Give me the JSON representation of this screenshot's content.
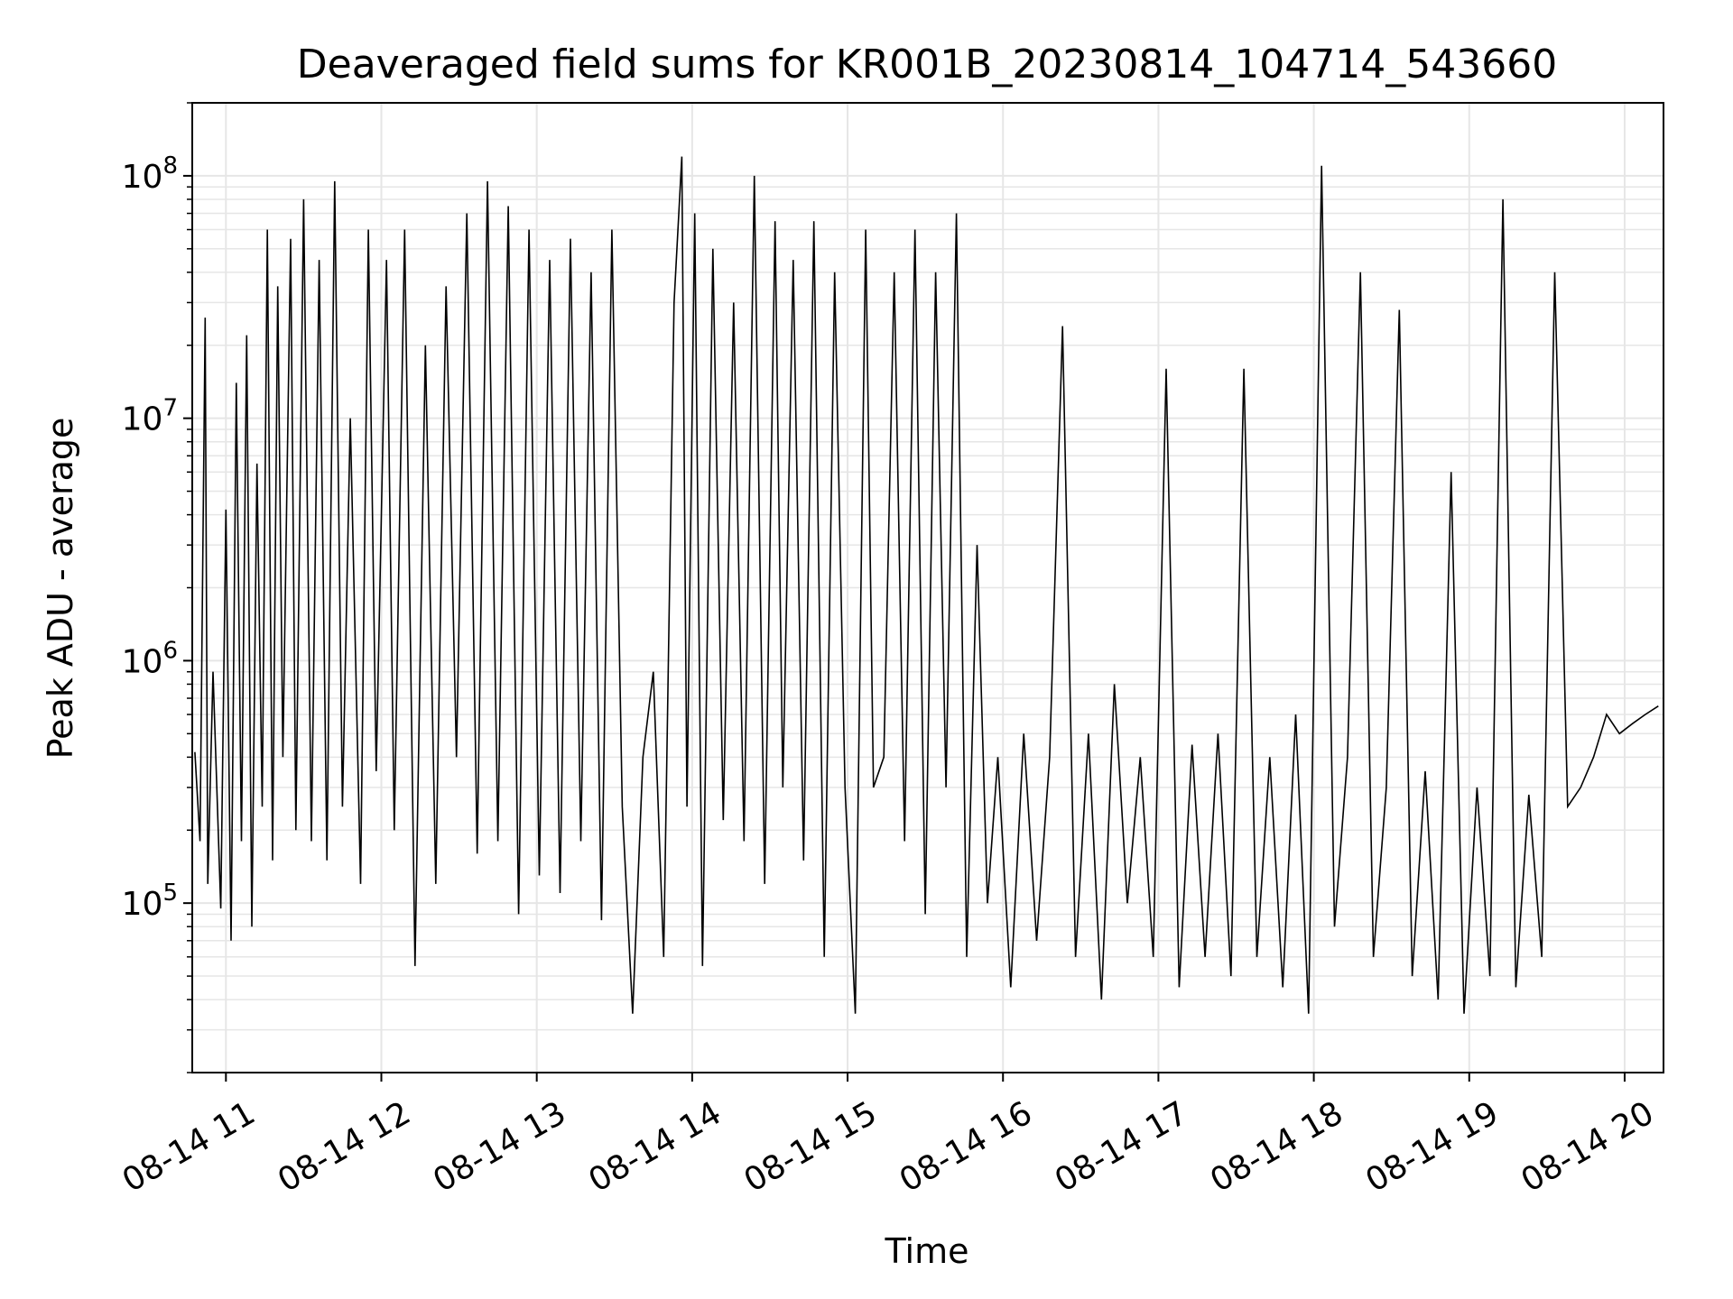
{
  "chart_data": {
    "type": "line",
    "title": "Deaveraged field sums for KR001B_20230814_104714_543660",
    "xlabel": "Time",
    "ylabel": "Peak ADU - average",
    "y_scale": "log",
    "ylim": [
      20000,
      200000000
    ],
    "xlim": [
      "2023-08-14 10:47",
      "2023-08-14 20:15"
    ],
    "grid": true,
    "line_color": "#000000",
    "grid_color": "#e6e6e6",
    "x_ticks": [
      {
        "value": "2023-08-14 11:00",
        "label": "08-14 11"
      },
      {
        "value": "2023-08-14 12:00",
        "label": "08-14 12"
      },
      {
        "value": "2023-08-14 13:00",
        "label": "08-14 13"
      },
      {
        "value": "2023-08-14 14:00",
        "label": "08-14 14"
      },
      {
        "value": "2023-08-14 15:00",
        "label": "08-14 15"
      },
      {
        "value": "2023-08-14 16:00",
        "label": "08-14 16"
      },
      {
        "value": "2023-08-14 17:00",
        "label": "08-14 17"
      },
      {
        "value": "2023-08-14 18:00",
        "label": "08-14 18"
      },
      {
        "value": "2023-08-14 19:00",
        "label": "08-14 19"
      },
      {
        "value": "2023-08-14 20:00",
        "label": "08-14 20"
      }
    ],
    "y_ticks": [
      {
        "value": 100000,
        "base": "10",
        "exp": "5"
      },
      {
        "value": 1000000,
        "base": "10",
        "exp": "6"
      },
      {
        "value": 10000000,
        "base": "10",
        "exp": "7"
      },
      {
        "value": 100000000,
        "base": "10",
        "exp": "8"
      }
    ],
    "series": [
      {
        "x": [
          "2023-08-14 10:48",
          "2023-08-14 10:50",
          "2023-08-14 10:52",
          "2023-08-14 10:53",
          "2023-08-14 10:55",
          "2023-08-14 10:58",
          "2023-08-14 11:00",
          "2023-08-14 11:02",
          "2023-08-14 11:04",
          "2023-08-14 11:06",
          "2023-08-14 11:08",
          "2023-08-14 11:10",
          "2023-08-14 11:12",
          "2023-08-14 11:14",
          "2023-08-14 11:16",
          "2023-08-14 11:18",
          "2023-08-14 11:20",
          "2023-08-14 11:22",
          "2023-08-14 11:25",
          "2023-08-14 11:27",
          "2023-08-14 11:30",
          "2023-08-14 11:33",
          "2023-08-14 11:36",
          "2023-08-14 11:39",
          "2023-08-14 11:42",
          "2023-08-14 11:45",
          "2023-08-14 11:48",
          "2023-08-14 11:52",
          "2023-08-14 11:55",
          "2023-08-14 11:58",
          "2023-08-14 12:02",
          "2023-08-14 12:05",
          "2023-08-14 12:09",
          "2023-08-14 12:13",
          "2023-08-14 12:17",
          "2023-08-14 12:21",
          "2023-08-14 12:25",
          "2023-08-14 12:29",
          "2023-08-14 12:33",
          "2023-08-14 12:37",
          "2023-08-14 12:41",
          "2023-08-14 12:45",
          "2023-08-14 12:49",
          "2023-08-14 12:53",
          "2023-08-14 12:57",
          "2023-08-14 13:01",
          "2023-08-14 13:05",
          "2023-08-14 13:09",
          "2023-08-14 13:13",
          "2023-08-14 13:17",
          "2023-08-14 13:21",
          "2023-08-14 13:25",
          "2023-08-14 13:29",
          "2023-08-14 13:33",
          "2023-08-14 13:37",
          "2023-08-14 13:41",
          "2023-08-14 13:45",
          "2023-08-14 13:49",
          "2023-08-14 13:53",
          "2023-08-14 13:56",
          "2023-08-14 13:58",
          "2023-08-14 14:01",
          "2023-08-14 14:04",
          "2023-08-14 14:08",
          "2023-08-14 14:12",
          "2023-08-14 14:16",
          "2023-08-14 14:20",
          "2023-08-14 14:24",
          "2023-08-14 14:28",
          "2023-08-14 14:32",
          "2023-08-14 14:35",
          "2023-08-14 14:39",
          "2023-08-14 14:43",
          "2023-08-14 14:47",
          "2023-08-14 14:51",
          "2023-08-14 14:55",
          "2023-08-14 14:59",
          "2023-08-14 15:03",
          "2023-08-14 15:07",
          "2023-08-14 15:10",
          "2023-08-14 15:14",
          "2023-08-14 15:18",
          "2023-08-14 15:22",
          "2023-08-14 15:26",
          "2023-08-14 15:30",
          "2023-08-14 15:34",
          "2023-08-14 15:38",
          "2023-08-14 15:42",
          "2023-08-14 15:46",
          "2023-08-14 15:50",
          "2023-08-14 15:54",
          "2023-08-14 15:58",
          "2023-08-14 16:03",
          "2023-08-14 16:08",
          "2023-08-14 16:13",
          "2023-08-14 16:18",
          "2023-08-14 16:23",
          "2023-08-14 16:28",
          "2023-08-14 16:33",
          "2023-08-14 16:38",
          "2023-08-14 16:43",
          "2023-08-14 16:48",
          "2023-08-14 16:53",
          "2023-08-14 16:58",
          "2023-08-14 17:03",
          "2023-08-14 17:08",
          "2023-08-14 17:13",
          "2023-08-14 17:18",
          "2023-08-14 17:23",
          "2023-08-14 17:28",
          "2023-08-14 17:33",
          "2023-08-14 17:38",
          "2023-08-14 17:43",
          "2023-08-14 17:48",
          "2023-08-14 17:53",
          "2023-08-14 17:58",
          "2023-08-14 18:03",
          "2023-08-14 18:08",
          "2023-08-14 18:13",
          "2023-08-14 18:18",
          "2023-08-14 18:23",
          "2023-08-14 18:28",
          "2023-08-14 18:33",
          "2023-08-14 18:38",
          "2023-08-14 18:43",
          "2023-08-14 18:48",
          "2023-08-14 18:53",
          "2023-08-14 18:58",
          "2023-08-14 19:03",
          "2023-08-14 19:08",
          "2023-08-14 19:13",
          "2023-08-14 19:18",
          "2023-08-14 19:23",
          "2023-08-14 19:28",
          "2023-08-14 19:33",
          "2023-08-14 19:38",
          "2023-08-14 19:43",
          "2023-08-14 19:48",
          "2023-08-14 19:53",
          "2023-08-14 19:58",
          "2023-08-14 20:03",
          "2023-08-14 20:08",
          "2023-08-14 20:13"
        ],
        "values": [
          420000,
          180000,
          26000000,
          120000,
          900000,
          95000,
          4200000,
          70000,
          14000000,
          180000,
          22000000,
          80000,
          6500000,
          250000,
          60000000,
          150000,
          35000000,
          400000,
          55000000,
          200000,
          80000000,
          180000,
          45000000,
          150000,
          95000000,
          250000,
          10000000,
          120000,
          60000000,
          350000,
          45000000,
          200000,
          60000000,
          55000,
          20000000,
          120000,
          35000000,
          400000,
          70000000,
          160000,
          95000000,
          180000,
          75000000,
          90000,
          60000000,
          130000,
          45000000,
          110000,
          55000000,
          180000,
          40000000,
          85000,
          60000000,
          250000,
          35000,
          400000,
          900000,
          60000,
          30000000,
          120000000,
          250000,
          70000000,
          55000,
          50000000,
          220000,
          30000000,
          180000,
          100000000,
          120000,
          65000000,
          300000,
          45000000,
          150000,
          65000000,
          60000,
          40000000,
          300000,
          35000,
          60000000,
          300000,
          400000,
          40000000,
          180000,
          60000000,
          90000,
          40000000,
          300000,
          70000000,
          60000,
          3000000,
          100000,
          400000,
          45000,
          500000,
          70000,
          400000,
          24000000,
          60000,
          500000,
          40000,
          800000,
          100000,
          400000,
          60000,
          16000000,
          45000,
          450000,
          60000,
          500000,
          50000,
          16000000,
          60000,
          400000,
          45000,
          600000,
          35000,
          110000000,
          80000,
          400000,
          40000000,
          60000,
          300000,
          28000000,
          50000,
          350000,
          40000,
          6000000,
          35000,
          300000,
          50000,
          80000000,
          45000,
          280000,
          60000,
          40000000,
          250000,
          300000,
          400000,
          600000,
          500000,
          550000,
          600000,
          650000
        ]
      }
    ]
  }
}
